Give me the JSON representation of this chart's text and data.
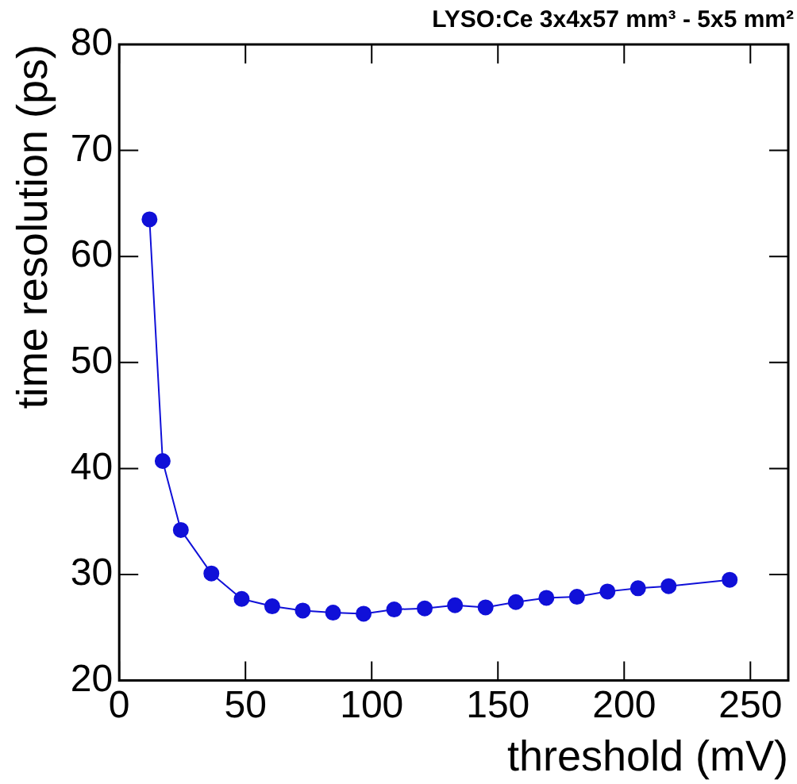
{
  "chart_data": {
    "type": "line",
    "title": "LYSO:Ce 3x4x57 mm³ - 5x5 mm²",
    "xlabel": "threshold (mV)",
    "ylabel": "time resolution (ps)",
    "series": [
      {
        "color": "#1010d8",
        "x": [
          12,
          17.2,
          24.4,
          36.5,
          48.5,
          60.6,
          72.7,
          84.7,
          96.8,
          108.9,
          121,
          133,
          145.1,
          157.1,
          169.2,
          181.3,
          193.4,
          205.5,
          217.6,
          241.8
        ],
        "values": [
          63.5,
          40.7,
          34.2,
          30.1,
          27.7,
          27.0,
          26.6,
          26.4,
          26.3,
          26.7,
          26.8,
          27.1,
          26.9,
          27.4,
          27.8,
          27.9,
          28.4,
          28.7,
          28.9,
          29.5
        ]
      }
    ],
    "xlim": [
      0,
      265
    ],
    "xticks": [
      0,
      50,
      100,
      150,
      200,
      250
    ],
    "ylim": [
      20,
      80
    ],
    "yticks": [
      20,
      30,
      40,
      50,
      60,
      70,
      80
    ],
    "grid": false,
    "legend": false,
    "marker": "circle",
    "line_style": "solid"
  }
}
